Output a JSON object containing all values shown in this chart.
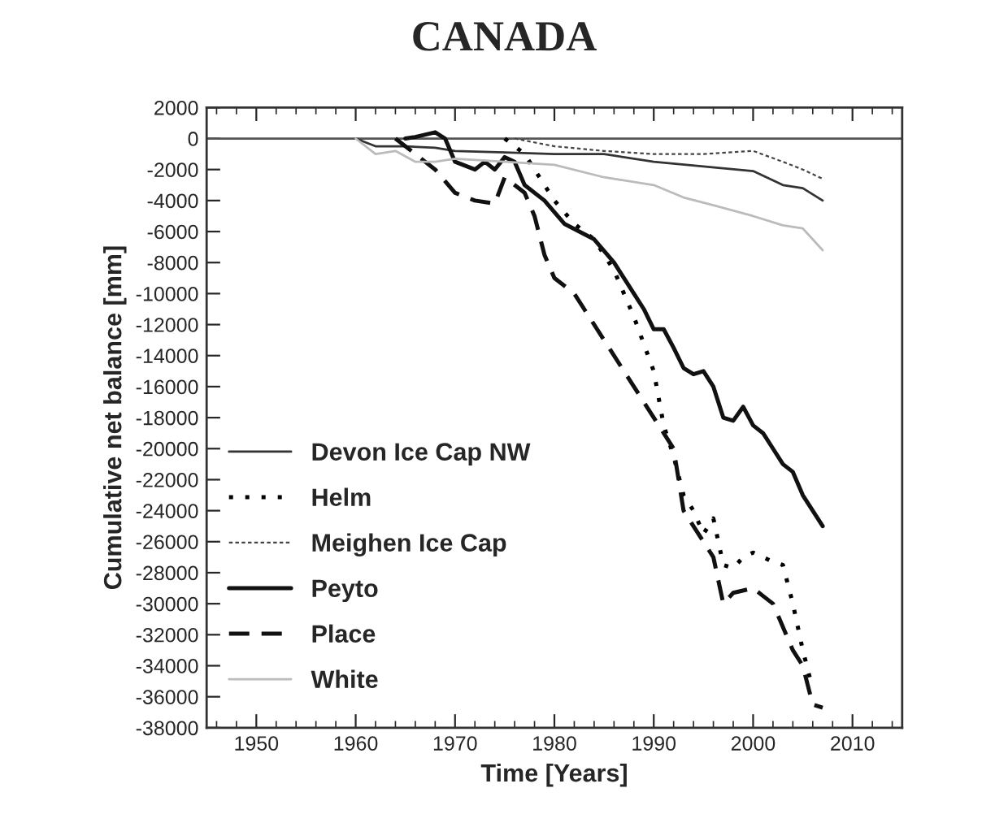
{
  "chart_data": {
    "type": "line",
    "title": "CANADA",
    "xlabel": "Time [Years]",
    "ylabel": "Cumulative net balance [mm]",
    "xlim": [
      1945,
      2015
    ],
    "xticks": [
      1950,
      1960,
      1970,
      1980,
      1990,
      2000,
      2010
    ],
    "ylim": [
      -38000,
      2000
    ],
    "yticks": [
      2000,
      0,
      -2000,
      -4000,
      -6000,
      -8000,
      -10000,
      -12000,
      -14000,
      -16000,
      -18000,
      -20000,
      -22000,
      -24000,
      -26000,
      -28000,
      -30000,
      -32000,
      -34000,
      -36000,
      -38000
    ],
    "grid": false,
    "legend": "bottom left",
    "ref_lines": [
      {
        "axis": "y",
        "value": 0,
        "color": "#555555",
        "line_style": "solid"
      }
    ],
    "series": [
      {
        "name": "Devon Ice Cap NW",
        "color": "#333333",
        "line_style": "solid",
        "x": [
          1960,
          1962,
          1965,
          1968,
          1970,
          1975,
          1980,
          1985,
          1990,
          1995,
          2000,
          2003,
          2005,
          2007
        ],
        "values": [
          0,
          -500,
          -500,
          -600,
          -800,
          -900,
          -1000,
          -1000,
          -1500,
          -1800,
          -2100,
          -3000,
          -3200,
          -4000
        ]
      },
      {
        "name": "Helm",
        "color": "#000000",
        "line_style": "dotted",
        "x": [
          1975,
          1977,
          1978,
          1980,
          1982,
          1984,
          1986,
          1988,
          1990,
          1991,
          1992,
          1993,
          1994,
          1995,
          1996,
          1997,
          1998,
          1999,
          2000,
          2001,
          2002,
          2003,
          2004,
          2005,
          2006
        ],
        "values": [
          0,
          -1000,
          -2000,
          -4000,
          -5500,
          -6500,
          -8500,
          -11500,
          -15000,
          -18500,
          -20500,
          -23000,
          -24000,
          -25500,
          -24500,
          -27500,
          -27700,
          -27000,
          -26700,
          -27000,
          -27300,
          -27500,
          -30000,
          -33000,
          -35500
        ]
      },
      {
        "name": "Meighen Ice Cap",
        "color": "#444444",
        "line_style": "dashed",
        "x": [
          1976,
          1980,
          1985,
          1990,
          1995,
          2000,
          2003,
          2005,
          2007
        ],
        "values": [
          0,
          -500,
          -800,
          -1000,
          -1000,
          -800,
          -1500,
          -2000,
          -2600
        ]
      },
      {
        "name": "Peyto",
        "color": "#111111",
        "line_style": "solid",
        "x": [
          1965,
          1966,
          1968,
          1969,
          1970,
          1972,
          1973,
          1974,
          1975,
          1976,
          1977,
          1979,
          1981,
          1984,
          1986,
          1988,
          1989,
          1990,
          1991,
          1992,
          1993,
          1994,
          1995,
          1996,
          1997,
          1998,
          1999,
          2000,
          2001,
          2002,
          2003,
          2004,
          2005,
          2007
        ],
        "values": [
          0,
          100,
          400,
          0,
          -1500,
          -2000,
          -1500,
          -2000,
          -1200,
          -1500,
          -3000,
          -4000,
          -5500,
          -6500,
          -8000,
          -10000,
          -11000,
          -12300,
          -12300,
          -13500,
          -14800,
          -15200,
          -15000,
          -16000,
          -18000,
          -18200,
          -17300,
          -18500,
          -19000,
          -20000,
          -21000,
          -21500,
          -23000,
          -25000
        ]
      },
      {
        "name": "Place",
        "color": "#111111",
        "line_style": "dashed",
        "x": [
          1964,
          1966,
          1968,
          1970,
          1972,
          1974,
          1975,
          1977,
          1978,
          1979,
          1980,
          1982,
          1983,
          1985,
          1987,
          1989,
          1991,
          1992,
          1993,
          1995,
          1996,
          1997,
          1998,
          2000,
          2001,
          2002,
          2004,
          2005,
          2006,
          2007
        ],
        "values": [
          0,
          -1000,
          -2000,
          -3500,
          -4000,
          -4200,
          -2500,
          -3500,
          -5000,
          -7500,
          -9000,
          -10000,
          -11000,
          -13000,
          -15000,
          -17000,
          -19000,
          -20000,
          -24000,
          -26000,
          -27000,
          -30000,
          -29300,
          -29000,
          -29500,
          -30000,
          -33000,
          -34000,
          -36500,
          -36700
        ]
      },
      {
        "name": "White",
        "color": "#bbbbbb",
        "line_style": "solid",
        "x": [
          1960,
          1962,
          1964,
          1966,
          1968,
          1970,
          1975,
          1980,
          1985,
          1990,
          1993,
          1996,
          2000,
          2003,
          2005,
          2007
        ],
        "values": [
          0,
          -1000,
          -800,
          -1500,
          -1500,
          -1300,
          -1500,
          -1700,
          -2500,
          -3000,
          -3800,
          -4300,
          -5000,
          -5600,
          -5800,
          -7200
        ]
      }
    ]
  }
}
